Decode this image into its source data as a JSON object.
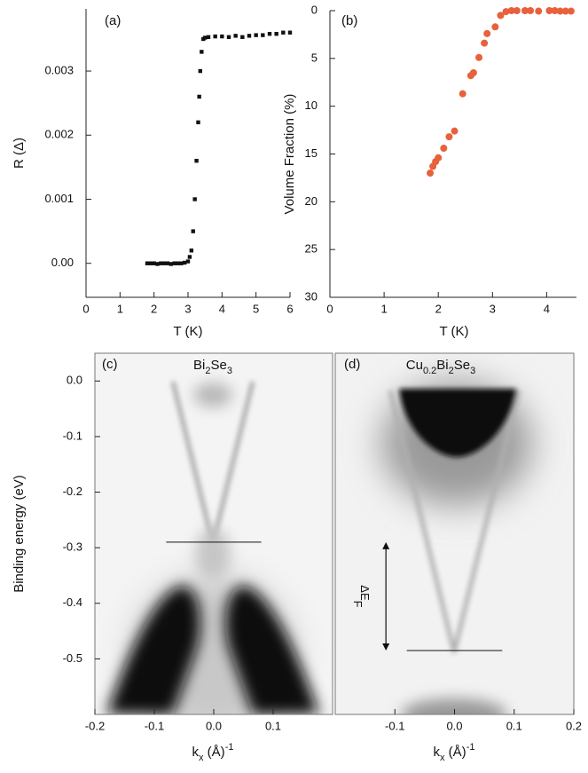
{
  "chart_data": [
    {
      "type": "scatter",
      "panel_label": "(a)",
      "x_label": "T (K)",
      "y_label": "R (Δ)",
      "color": "#111111",
      "marker": "square",
      "x": [
        1.8,
        1.9,
        2.0,
        2.1,
        2.2,
        2.3,
        2.4,
        2.5,
        2.6,
        2.7,
        2.8,
        2.9,
        3.0,
        3.05,
        3.1,
        3.15,
        3.2,
        3.25,
        3.3,
        3.33,
        3.36,
        3.4,
        3.45,
        3.5,
        3.6,
        3.8,
        4.0,
        4.2,
        4.4,
        4.6,
        4.8,
        5.0,
        5.2,
        5.4,
        5.6,
        5.8,
        6.0
      ],
      "values": [
        0,
        0,
        0,
        -1e-05,
        0,
        0,
        0,
        -1e-05,
        0,
        0,
        0,
        1e-05,
        3e-05,
        0.0001,
        0.0002,
        0.0005,
        0.001,
        0.0016,
        0.0022,
        0.0026,
        0.003,
        0.0033,
        0.0035,
        0.00352,
        0.00353,
        0.00354,
        0.00354,
        0.00353,
        0.00355,
        0.00353,
        0.00355,
        0.00356,
        0.00356,
        0.00358,
        0.00358,
        0.0036,
        0.0036
      ],
      "xlim": [
        0,
        6
      ],
      "xticks": [
        0,
        1,
        2,
        3,
        4,
        5,
        6
      ],
      "ylim": [
        -0.00053,
        0.00397
      ],
      "yticks": [
        {
          "value": 0,
          "label": "0.00"
        },
        0.001,
        0.002,
        0.003
      ]
    },
    {
      "type": "scatter",
      "panel_label": "(b)",
      "x_label": "T (K)",
      "y_label": "Volume Fraction (%)",
      "color": "#e8603c",
      "marker": "circle",
      "y_inverted": true,
      "x": [
        1.85,
        1.9,
        1.95,
        2.0,
        2.1,
        2.2,
        2.3,
        2.45,
        2.6,
        2.65,
        2.75,
        2.85,
        2.9,
        3.05,
        3.15,
        3.25,
        3.35,
        3.45,
        3.6,
        3.7,
        3.85,
        4.05,
        4.15,
        4.25,
        4.35,
        4.45
      ],
      "values": [
        17,
        16.3,
        15.8,
        15.4,
        14.4,
        13.2,
        12.6,
        8.7,
        6.8,
        6.5,
        4.9,
        3.4,
        2.4,
        1.7,
        0.5,
        0.1,
        0,
        0,
        0,
        0,
        0.05,
        0,
        0,
        0.05,
        0.05,
        0.05
      ],
      "xlim": [
        0,
        4.55
      ],
      "xticks": [
        0,
        1,
        2,
        3,
        4
      ],
      "ylim": [
        0,
        30
      ],
      "yticks": [
        0,
        5,
        10,
        15,
        20,
        25,
        30
      ]
    },
    {
      "type": "image",
      "panel_label": "(c)",
      "title_parts": [
        {
          "text": "Bi"
        },
        {
          "text": "2",
          "sub": true
        },
        {
          "text": "Se"
        },
        {
          "text": "3",
          "sub": true
        }
      ],
      "x_label_parts": [
        {
          "text": "k"
        },
        {
          "text": "x",
          "sub": true
        },
        {
          "text": " (Å)"
        },
        {
          "text": "-1",
          "sup": true
        }
      ],
      "y_label": "Binding energy (eV)",
      "hline": -0.29,
      "xlim": [
        -0.2,
        0.2
      ],
      "xticks": [
        -0.2,
        -0.1,
        {
          "value": 0,
          "label": "0.0"
        },
        0.1
      ],
      "ylim": [
        -0.6,
        0.05
      ],
      "yticks": [
        {
          "value": 0,
          "label": "0.0"
        },
        -0.1,
        -0.2,
        -0.3,
        -0.4,
        -0.5
      ]
    },
    {
      "type": "image",
      "panel_label": "(d)",
      "title_parts": [
        {
          "text": "Cu"
        },
        {
          "text": "0.2",
          "sub": true
        },
        {
          "text": "Bi"
        },
        {
          "text": "2",
          "sub": true
        },
        {
          "text": "Se"
        },
        {
          "text": "3",
          "sub": true
        }
      ],
      "x_label_parts": [
        {
          "text": "k"
        },
        {
          "text": "x",
          "sub": true
        },
        {
          "text": " (Å)"
        },
        {
          "text": "-1",
          "sup": true
        }
      ],
      "hline": -0.485,
      "arrow": [
        -0.29,
        -0.485
      ],
      "arrow_label": {
        "text": "ΔE",
        "subscript": "F"
      },
      "xlim": [
        -0.2,
        0.2
      ],
      "xticks": [
        -0.1,
        {
          "value": 0,
          "label": "0.0"
        },
        0.1,
        0.2
      ],
      "ylim": [
        -0.6,
        0.05
      ]
    }
  ]
}
